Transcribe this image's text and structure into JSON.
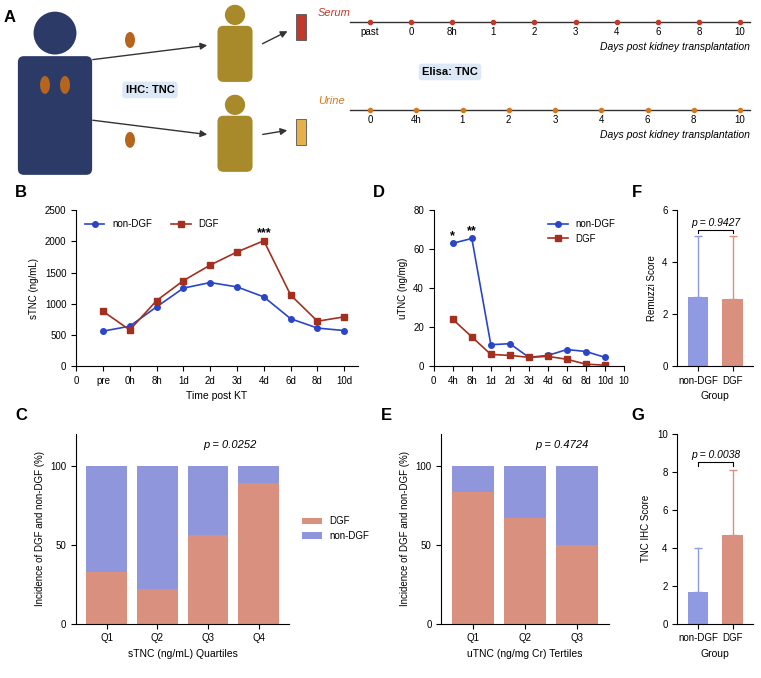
{
  "panel_a": {
    "panel": "A",
    "ihc": "IHC: TNC",
    "elisa": "Elisa: TNC",
    "serum": {
      "label": "Serum",
      "ticks": [
        "past",
        "0",
        "8h",
        "1",
        "2",
        "3",
        "4",
        "6",
        "8",
        "10"
      ],
      "axis_label": "Days post kidney transplantation"
    },
    "urine": {
      "label": "Urine",
      "ticks": [
        "0",
        "4h",
        "1",
        "2",
        "3",
        "4",
        "6",
        "8",
        "10"
      ],
      "axis_label": "Days post kidney transplantation"
    }
  },
  "chart_data": [
    {
      "panel": "B",
      "type": "line",
      "x": [
        1,
        2,
        3,
        4,
        5,
        6,
        7,
        8,
        9,
        10
      ],
      "xlim": [
        0,
        10.5
      ],
      "xticks": [
        0,
        {
          "value": 1,
          "label": "pre"
        },
        {
          "value": 2,
          "label": "0h"
        },
        {
          "value": 3,
          "label": "8h"
        },
        {
          "value": 4,
          "label": "1d"
        },
        {
          "value": 5,
          "label": "2d"
        },
        {
          "value": 6,
          "label": "3d"
        },
        {
          "value": 7,
          "label": "4d"
        },
        {
          "value": 8,
          "label": "6d"
        },
        {
          "value": 9,
          "label": "8d"
        },
        {
          "value": 10,
          "label": "10d"
        }
      ],
      "ylim": [
        0,
        2500
      ],
      "yticks": [
        0,
        500,
        1000,
        1500,
        2000,
        2500
      ],
      "x_label": "Time post KT",
      "y_label": "sTNC (ng/mL)",
      "legend": "upper left",
      "series": [
        {
          "name": "non-DGF",
          "color": "#2b45c9",
          "marker": "circle",
          "values": [
            560,
            640,
            950,
            1250,
            1340,
            1270,
            1110,
            760,
            610,
            570
          ]
        },
        {
          "name": "DGF",
          "color": "#a3301f",
          "marker": "square",
          "values": [
            880,
            580,
            1050,
            1370,
            1620,
            1830,
            2010,
            1140,
            720,
            790
          ]
        }
      ],
      "annotations": [
        {
          "x": 7,
          "text": "***"
        }
      ]
    },
    {
      "panel": "D",
      "type": "line",
      "x": [
        1,
        2,
        3,
        4,
        5,
        6,
        7,
        8,
        9
      ],
      "xlim": [
        0,
        10
      ],
      "xticks": [
        0,
        {
          "value": 1,
          "label": "4h"
        },
        {
          "value": 2,
          "label": "8h"
        },
        {
          "value": 3,
          "label": "1d"
        },
        {
          "value": 4,
          "label": "2d"
        },
        {
          "value": 5,
          "label": "3d"
        },
        {
          "value": 6,
          "label": "4d"
        },
        {
          "value": 7,
          "label": "6d"
        },
        {
          "value": 8,
          "label": "8d"
        },
        {
          "value": 9,
          "label": "10d"
        },
        10
      ],
      "ylim": [
        0,
        80
      ],
      "yticks": [
        0,
        20,
        40,
        60,
        80
      ],
      "y_label": "uTNC (ng/mg)",
      "legend": "upper right",
      "series": [
        {
          "name": "non-DGF",
          "color": "#2b45c9",
          "marker": "circle",
          "values": [
            63,
            65.5,
            11,
            11.5,
            4.5,
            5.5,
            8.5,
            7.5,
            4.5
          ]
        },
        {
          "name": "DGF",
          "color": "#a3301f",
          "marker": "square",
          "values": [
            24,
            15,
            6,
            5.5,
            4.5,
            5,
            3.5,
            1,
            0.5
          ]
        }
      ],
      "annotations": [
        {
          "x": 1,
          "text": "*"
        },
        {
          "x": 2,
          "text": "**"
        }
      ]
    },
    {
      "panel": "F",
      "type": "bar",
      "categories": [
        "non-DGF",
        "DGF"
      ],
      "values": [
        2.65,
        2.6
      ],
      "errors": [
        2.35,
        2.4
      ],
      "colors": [
        "#8f9ae3",
        "#d9907e"
      ],
      "ylim": [
        0,
        6
      ],
      "yticks": [
        0,
        2,
        4,
        6
      ],
      "x_label": "Group",
      "y_label": "Remuzzi Score",
      "annotation": "p = 0.9427"
    },
    {
      "panel": "C",
      "type": "bar",
      "stacked": true,
      "categories": [
        "Q1",
        "Q2",
        "Q3",
        "Q4"
      ],
      "series": [
        {
          "name": "DGF",
          "color": "#d9907e",
          "values": [
            33,
            22,
            56,
            89
          ]
        },
        {
          "name": "non-DGF",
          "color": "#8f96dc",
          "values": [
            67,
            78,
            44,
            11
          ]
        }
      ],
      "ylim": [
        0,
        120
      ],
      "yticks": [
        0,
        50,
        100
      ],
      "legend": "right",
      "x_label": "sTNC (ng/mL) Quartiles",
      "y_label": "Incidence of DGF and non-DGF (%)",
      "annotation": "p = 0.0252"
    },
    {
      "panel": "E",
      "type": "bar",
      "stacked": true,
      "categories": [
        "Q1",
        "Q2",
        "Q3"
      ],
      "series": [
        {
          "color": "#d9907e",
          "values": [
            83,
            67,
            50
          ]
        },
        {
          "color": "#8f96dc",
          "values": [
            17,
            33,
            50
          ]
        }
      ],
      "ylim": [
        0,
        120
      ],
      "yticks": [
        0,
        50,
        100
      ],
      "x_label": "uTNC (ng/mg Cr) Tertiles",
      "y_label": "Incidence of DGF and non-DGF (%)",
      "annotation": "p = 0.4724"
    },
    {
      "panel": "G",
      "type": "bar",
      "categories": [
        "non-DGF",
        "DGF"
      ],
      "values": [
        1.65,
        4.65
      ],
      "errors": [
        2.35,
        3.45
      ],
      "colors": [
        "#8f9ae3",
        "#d9907e"
      ],
      "ylim": [
        0,
        10
      ],
      "yticks": [
        0,
        2,
        4,
        6,
        8,
        10
      ],
      "x_label": "Group",
      "y_label": "TNC IHC Score",
      "annotation": "p = 0.0038"
    }
  ]
}
